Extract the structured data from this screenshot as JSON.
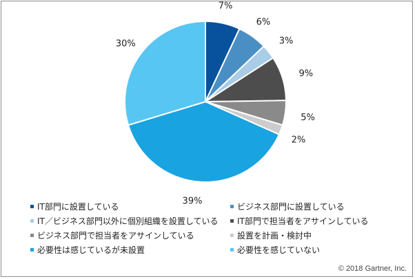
{
  "chart_data": {
    "type": "pie",
    "title": "",
    "categories": [
      "IT部門に設置している",
      "ビジネス部門に設置している",
      "IT／ビジネス部門以外に個別組織を設置している",
      "IT部門で担当者をアサインしている",
      "ビジネス部門で担当者をアサインしている",
      "設置を計画・検討中",
      "必要性は感じているが未設置",
      "必要性を感じていない"
    ],
    "values": [
      7,
      6,
      3,
      9,
      5,
      2,
      39,
      30
    ],
    "value_labels": [
      "7%",
      "6%",
      "3%",
      "9%",
      "5%",
      "2%",
      "39%",
      "30%"
    ],
    "colors": [
      "#08519c",
      "#4a8fc4",
      "#a9cce7",
      "#4d4d4d",
      "#8a8a8a",
      "#cccccc",
      "#19a3e0",
      "#58c6f2"
    ],
    "start_angle_deg": 0,
    "direction": "clockwise",
    "legend_position": "bottom"
  },
  "credit": "© 2018 Gartner, Inc."
}
